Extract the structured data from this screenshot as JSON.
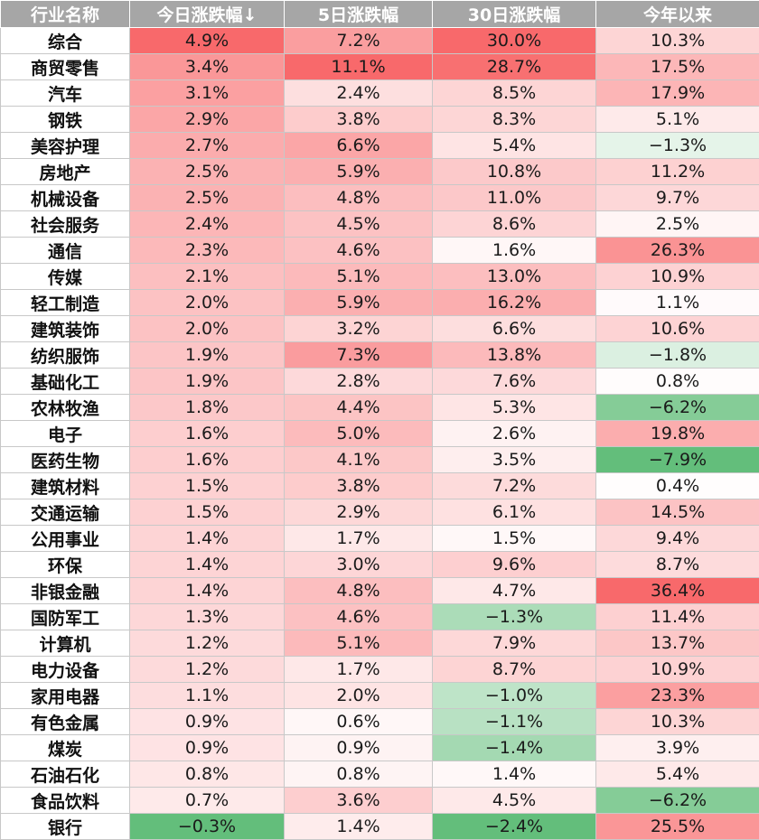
{
  "chart_data": {
    "type": "heatmap",
    "columns": [
      "行业名称",
      "今日涨跌幅↓",
      "5日涨跌幅",
      "30日涨跌幅",
      "今年以来"
    ],
    "rows": [
      {
        "name": "综合",
        "values": [
          4.9,
          7.2,
          30.0,
          10.3
        ],
        "labels": [
          "4.9%",
          "7.2%",
          "30.0%",
          "10.3%"
        ]
      },
      {
        "name": "商贸零售",
        "values": [
          3.4,
          11.1,
          28.7,
          17.5
        ],
        "labels": [
          "3.4%",
          "11.1%",
          "28.7%",
          "17.5%"
        ]
      },
      {
        "name": "汽车",
        "values": [
          3.1,
          2.4,
          8.5,
          17.9
        ],
        "labels": [
          "3.1%",
          "2.4%",
          "8.5%",
          "17.9%"
        ]
      },
      {
        "name": "钢铁",
        "values": [
          2.9,
          3.8,
          8.3,
          5.1
        ],
        "labels": [
          "2.9%",
          "3.8%",
          "8.3%",
          "5.1%"
        ]
      },
      {
        "name": "美容护理",
        "values": [
          2.7,
          6.6,
          5.4,
          -1.3
        ],
        "labels": [
          "2.7%",
          "6.6%",
          "5.4%",
          "−1.3%"
        ]
      },
      {
        "name": "房地产",
        "values": [
          2.5,
          5.9,
          10.8,
          11.2
        ],
        "labels": [
          "2.5%",
          "5.9%",
          "10.8%",
          "11.2%"
        ]
      },
      {
        "name": "机械设备",
        "values": [
          2.5,
          4.8,
          11.0,
          9.7
        ],
        "labels": [
          "2.5%",
          "4.8%",
          "11.0%",
          "9.7%"
        ]
      },
      {
        "name": "社会服务",
        "values": [
          2.4,
          4.5,
          8.6,
          2.5
        ],
        "labels": [
          "2.4%",
          "4.5%",
          "8.6%",
          "2.5%"
        ]
      },
      {
        "name": "通信",
        "values": [
          2.3,
          4.6,
          1.6,
          26.3
        ],
        "labels": [
          "2.3%",
          "4.6%",
          "1.6%",
          "26.3%"
        ]
      },
      {
        "name": "传媒",
        "values": [
          2.1,
          5.1,
          13.0,
          10.9
        ],
        "labels": [
          "2.1%",
          "5.1%",
          "13.0%",
          "10.9%"
        ]
      },
      {
        "name": "轻工制造",
        "values": [
          2.0,
          5.9,
          16.2,
          1.1
        ],
        "labels": [
          "2.0%",
          "5.9%",
          "16.2%",
          "1.1%"
        ]
      },
      {
        "name": "建筑装饰",
        "values": [
          2.0,
          3.2,
          6.6,
          10.6
        ],
        "labels": [
          "2.0%",
          "3.2%",
          "6.6%",
          "10.6%"
        ]
      },
      {
        "name": "纺织服饰",
        "values": [
          1.9,
          7.3,
          13.8,
          -1.8
        ],
        "labels": [
          "1.9%",
          "7.3%",
          "13.8%",
          "−1.8%"
        ]
      },
      {
        "name": "基础化工",
        "values": [
          1.9,
          2.8,
          7.6,
          0.8
        ],
        "labels": [
          "1.9%",
          "2.8%",
          "7.6%",
          "0.8%"
        ]
      },
      {
        "name": "农林牧渔",
        "values": [
          1.8,
          4.4,
          5.3,
          -6.2
        ],
        "labels": [
          "1.8%",
          "4.4%",
          "5.3%",
          "−6.2%"
        ]
      },
      {
        "name": "电子",
        "values": [
          1.6,
          5.0,
          2.6,
          19.8
        ],
        "labels": [
          "1.6%",
          "5.0%",
          "2.6%",
          "19.8%"
        ]
      },
      {
        "name": "医药生物",
        "values": [
          1.6,
          4.1,
          3.5,
          -7.9
        ],
        "labels": [
          "1.6%",
          "4.1%",
          "3.5%",
          "−7.9%"
        ]
      },
      {
        "name": "建筑材料",
        "values": [
          1.5,
          3.8,
          7.2,
          0.4
        ],
        "labels": [
          "1.5%",
          "3.8%",
          "7.2%",
          "0.4%"
        ]
      },
      {
        "name": "交通运输",
        "values": [
          1.5,
          2.9,
          6.1,
          14.5
        ],
        "labels": [
          "1.5%",
          "2.9%",
          "6.1%",
          "14.5%"
        ]
      },
      {
        "name": "公用事业",
        "values": [
          1.4,
          1.7,
          1.5,
          9.4
        ],
        "labels": [
          "1.4%",
          "1.7%",
          "1.5%",
          "9.4%"
        ]
      },
      {
        "name": "环保",
        "values": [
          1.4,
          3.0,
          9.6,
          8.7
        ],
        "labels": [
          "1.4%",
          "3.0%",
          "9.6%",
          "8.7%"
        ]
      },
      {
        "name": "非银金融",
        "values": [
          1.4,
          4.8,
          4.7,
          36.4
        ],
        "labels": [
          "1.4%",
          "4.8%",
          "4.7%",
          "36.4%"
        ]
      },
      {
        "name": "国防军工",
        "values": [
          1.3,
          4.6,
          -1.3,
          11.4
        ],
        "labels": [
          "1.3%",
          "4.6%",
          "−1.3%",
          "11.4%"
        ]
      },
      {
        "name": "计算机",
        "values": [
          1.2,
          5.1,
          7.9,
          13.7
        ],
        "labels": [
          "1.2%",
          "5.1%",
          "7.9%",
          "13.7%"
        ]
      },
      {
        "name": "电力设备",
        "values": [
          1.2,
          1.7,
          8.7,
          10.9
        ],
        "labels": [
          "1.2%",
          "1.7%",
          "8.7%",
          "10.9%"
        ]
      },
      {
        "name": "家用电器",
        "values": [
          1.1,
          2.0,
          -1.0,
          23.3
        ],
        "labels": [
          "1.1%",
          "2.0%",
          "−1.0%",
          "23.3%"
        ]
      },
      {
        "name": "有色金属",
        "values": [
          0.9,
          0.6,
          -1.1,
          10.3
        ],
        "labels": [
          "0.9%",
          "0.6%",
          "−1.1%",
          "10.3%"
        ]
      },
      {
        "name": "煤炭",
        "values": [
          0.9,
          0.9,
          -1.4,
          3.9
        ],
        "labels": [
          "0.9%",
          "0.9%",
          "−1.4%",
          "3.9%"
        ]
      },
      {
        "name": "石油石化",
        "values": [
          0.8,
          0.8,
          1.4,
          5.4
        ],
        "labels": [
          "0.8%",
          "0.8%",
          "1.4%",
          "5.4%"
        ]
      },
      {
        "name": "食品饮料",
        "values": [
          0.7,
          3.6,
          4.5,
          -6.2
        ],
        "labels": [
          "0.7%",
          "3.6%",
          "4.5%",
          "−6.2%"
        ]
      },
      {
        "name": "银行",
        "values": [
          -0.3,
          1.4,
          -2.4,
          25.5
        ],
        "labels": [
          "−0.3%",
          "1.4%",
          "−2.4%",
          "25.5%"
        ]
      }
    ],
    "colors": {
      "header_bg": "#a6a6a6",
      "header_text": "#ffffff",
      "positive_max": "#f8696b",
      "negative_max": "#63be7b",
      "neutral": "#ffffff"
    }
  }
}
